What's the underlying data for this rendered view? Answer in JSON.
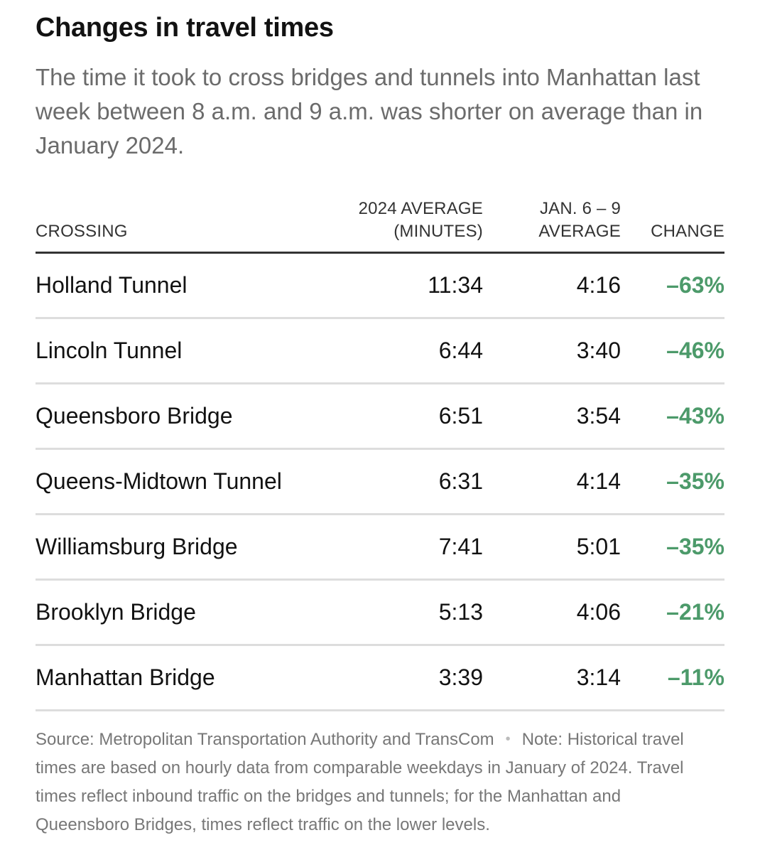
{
  "header": {
    "title": "Changes in travel times",
    "subtitle": "The time it took to cross bridges and tunnels into Manhattan last week between 8 a.m. and 9 a.m. was shorter on average than in January 2024."
  },
  "table": {
    "columns": {
      "crossing": "CROSSING",
      "avg2024_line1": "2024 AVERAGE",
      "avg2024_line2": "(MINUTES)",
      "jan_line1": "JAN. 6 – 9",
      "jan_line2": "AVERAGE",
      "change": "CHANGE"
    },
    "rows": [
      {
        "crossing": "Holland Tunnel",
        "avg2024": "11:34",
        "jan": "4:16",
        "change": "–63%"
      },
      {
        "crossing": "Lincoln Tunnel",
        "avg2024": "6:44",
        "jan": "3:40",
        "change": "–46%"
      },
      {
        "crossing": "Queensboro Bridge",
        "avg2024": "6:51",
        "jan": "3:54",
        "change": "–43%"
      },
      {
        "crossing": "Queens-Midtown Tunnel",
        "avg2024": "6:31",
        "jan": "4:14",
        "change": "–35%"
      },
      {
        "crossing": "Williamsburg Bridge",
        "avg2024": "7:41",
        "jan": "5:01",
        "change": "–35%"
      },
      {
        "crossing": "Brooklyn Bridge",
        "avg2024": "5:13",
        "jan": "4:06",
        "change": "–21%"
      },
      {
        "crossing": "Manhattan Bridge",
        "avg2024": "3:39",
        "jan": "3:14",
        "change": "–11%"
      }
    ]
  },
  "footer": {
    "source": "Source: Metropolitan Transportation Authority and TransCom",
    "separator": "•",
    "note": "Note: Historical travel times are based on hourly data from comparable weekdays in January of 2024. Travel times reflect inbound traffic on the bridges and tunnels; for the Manhattan and Queensboro Bridges, times reflect traffic on the lower levels."
  },
  "colors": {
    "change_green": "#4c9a6a",
    "title": "#121212",
    "subtitle": "#6b6b6b"
  }
}
